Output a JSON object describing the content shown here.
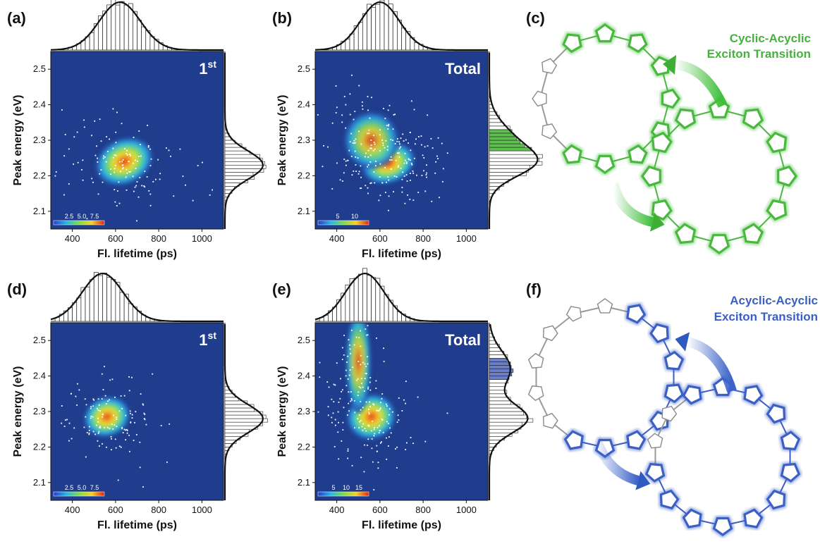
{
  "colors": {
    "plot_bg": "#1f3d8c",
    "green_glow": "#3fbf3a",
    "green_ring": "#4ab83f",
    "blue_glow": "#3a62c8",
    "blue_ring": "#3b5fc4",
    "green_title": "#45b33b",
    "blue_title": "#3a5fc3",
    "grey_unit": "#8a8a8a"
  },
  "chart_data": [
    {
      "panel": "(a)",
      "type": "heatmap",
      "inset_label": "1",
      "inset_sup": "st",
      "xlabel": "Fl. lifetime (ps)",
      "ylabel": "Peak energy (eV)",
      "xlim": [
        300,
        1100
      ],
      "ylim": [
        2.05,
        2.55
      ],
      "xticks": [
        "400",
        "600",
        "800",
        "1000"
      ],
      "yticks": [
        "2.1",
        "2.2",
        "2.3",
        "2.4",
        "2.5"
      ],
      "colorbar_ticks": [
        "2.5",
        "5.0",
        "7.5"
      ],
      "clusters": [
        {
          "x": 640,
          "y": 2.24,
          "sx": 120,
          "sy": 0.04,
          "rot": -25
        }
      ],
      "top_hist_peak": 620,
      "side_hist_peak": 2.23,
      "side_peak_2": null
    },
    {
      "panel": "(b)",
      "type": "heatmap",
      "inset_label": "Total",
      "inset_sup": "",
      "xlabel": "Fl. lifetime (ps)",
      "ylabel": "Peak energy (eV)",
      "xlim": [
        300,
        1100
      ],
      "ylim": [
        2.05,
        2.55
      ],
      "xticks": [
        "400",
        "600",
        "800",
        "1000"
      ],
      "yticks": [
        "2.1",
        "2.2",
        "2.3",
        "2.4",
        "2.5"
      ],
      "colorbar_ticks": [
        "5",
        "10"
      ],
      "clusters": [
        {
          "x": 640,
          "y": 2.235,
          "sx": 110,
          "sy": 0.035,
          "rot": -20
        },
        {
          "x": 560,
          "y": 2.3,
          "sx": 110,
          "sy": 0.05,
          "rot": 0
        }
      ],
      "top_hist_peak": 600,
      "side_hist_peak": 2.235,
      "side_peak_2": 2.3
    },
    {
      "panel": "(d)",
      "type": "heatmap",
      "inset_label": "1",
      "inset_sup": "st",
      "xlabel": "Fl. lifetime (ps)",
      "ylabel": "Peak energy (eV)",
      "xlim": [
        300,
        1100
      ],
      "ylim": [
        2.05,
        2.55
      ],
      "xticks": [
        "400",
        "600",
        "800",
        "1000"
      ],
      "yticks": [
        "2.1",
        "2.2",
        "2.3",
        "2.4",
        "2.5"
      ],
      "colorbar_ticks": [
        "2.5",
        "5.0",
        "7.5"
      ],
      "clusters": [
        {
          "x": 560,
          "y": 2.285,
          "sx": 95,
          "sy": 0.035,
          "rot": -20
        }
      ],
      "top_hist_peak": 540,
      "side_hist_peak": 2.28,
      "side_peak_2": null
    },
    {
      "panel": "(e)",
      "type": "heatmap",
      "inset_label": "Total",
      "inset_sup": "",
      "xlabel": "Fl. lifetime (ps)",
      "ylabel": "Peak energy (eV)",
      "xlim": [
        300,
        1100
      ],
      "ylim": [
        2.05,
        2.55
      ],
      "xticks": [
        "400",
        "600",
        "800",
        "1000"
      ],
      "yticks": [
        "2.1",
        "2.2",
        "2.3",
        "2.4",
        "2.5"
      ],
      "colorbar_ticks": [
        "5",
        "10",
        "15"
      ],
      "clusters": [
        {
          "x": 560,
          "y": 2.285,
          "sx": 100,
          "sy": 0.04,
          "rot": -20
        },
        {
          "x": 500,
          "y": 2.44,
          "sx": 50,
          "sy": 0.09,
          "rot": 0
        }
      ],
      "top_hist_peak": 530,
      "side_hist_peak": 2.28,
      "side_peak_2": 2.42
    }
  ],
  "diagrams": [
    {
      "panel": "(c)",
      "title_line1": "Cyclic-Acyclic",
      "title_line2": "Exciton Transition",
      "color_key": "green"
    },
    {
      "panel": "(f)",
      "title_line1": "Acyclic-Acyclic",
      "title_line2": "Exciton Transition",
      "color_key": "blue"
    }
  ]
}
